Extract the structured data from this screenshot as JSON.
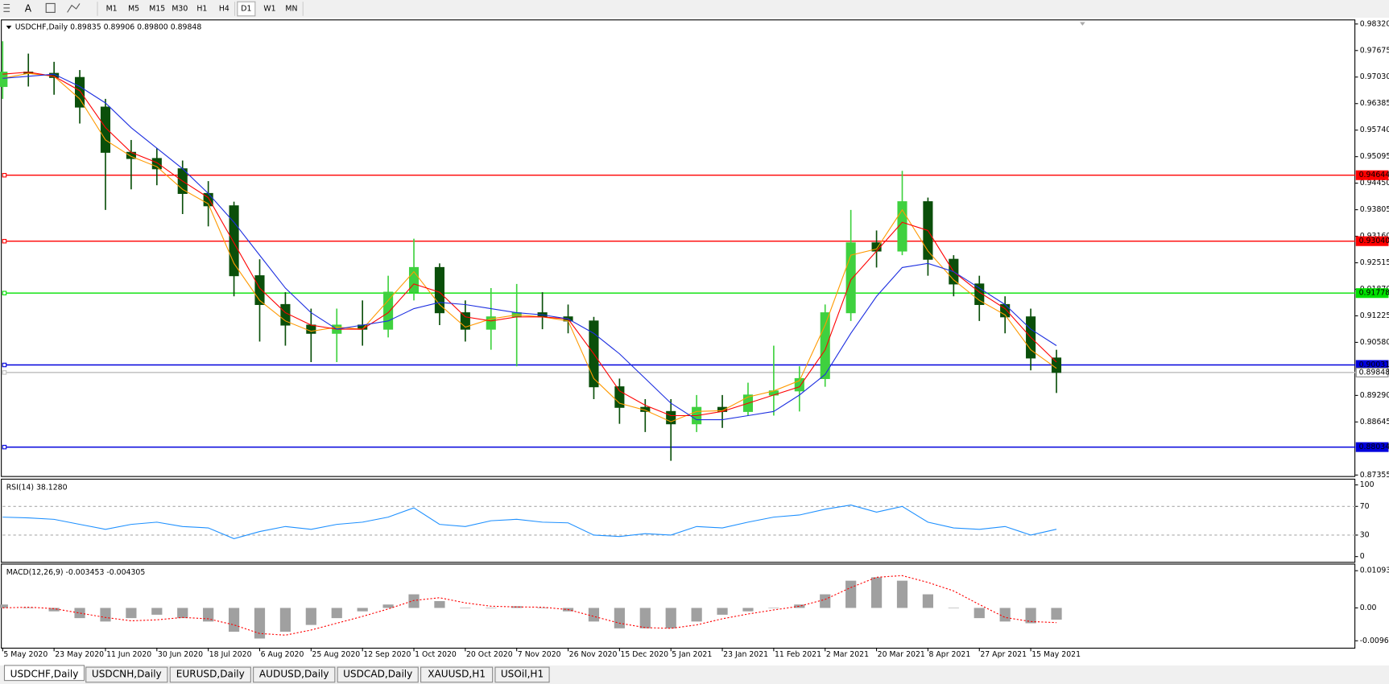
{
  "toolbar": {
    "timeframes": [
      "M1",
      "M5",
      "M15",
      "M30",
      "H1",
      "H4",
      "D1",
      "W1",
      "MN"
    ]
  },
  "tabs": [
    "USDCHF,Daily",
    "USDCNH,Daily",
    "EURUSD,Daily",
    "AUDUSD,Daily",
    "USDCAD,Daily",
    "XAUUSD,H1",
    "USOil,H1"
  ],
  "chart_data": [
    {
      "type": "candlestick",
      "title": "USDCHF,Daily  0.89835 0.89906 0.89800 0.89848",
      "up_color": "#3fd13f",
      "down_color": "#0a4f0a",
      "x": [
        0,
        7,
        14,
        21,
        28,
        35,
        42,
        49,
        56,
        63,
        70,
        77,
        84,
        91,
        98,
        105,
        112,
        119,
        126,
        133,
        140,
        147,
        154,
        161,
        168,
        175,
        182,
        189,
        196,
        203,
        210,
        217,
        224,
        231,
        238,
        245,
        252,
        259,
        266,
        273,
        280,
        287
      ],
      "open": [
        0.968,
        0.9715,
        0.9712,
        0.9702,
        0.963,
        0.952,
        0.9505,
        0.948,
        0.942,
        0.939,
        0.922,
        0.915,
        0.91,
        0.908,
        0.91,
        0.909,
        0.918,
        0.924,
        0.913,
        0.909,
        0.912,
        0.913,
        0.912,
        0.911,
        0.895,
        0.89,
        0.889,
        0.886,
        0.89,
        0.889,
        0.893,
        0.894,
        0.897,
        0.913,
        0.93,
        0.928,
        0.94,
        0.926,
        0.92,
        0.915,
        0.912,
        0.902
      ],
      "high": [
        0.979,
        0.976,
        0.974,
        0.972,
        0.965,
        0.955,
        0.953,
        0.95,
        0.945,
        0.94,
        0.926,
        0.918,
        0.914,
        0.914,
        0.916,
        0.922,
        0.931,
        0.925,
        0.916,
        0.919,
        0.92,
        0.918,
        0.915,
        0.912,
        0.897,
        0.892,
        0.892,
        0.893,
        0.893,
        0.896,
        0.905,
        0.9,
        0.915,
        0.938,
        0.933,
        0.9475,
        0.941,
        0.927,
        0.922,
        0.917,
        0.914,
        0.904
      ],
      "low": [
        0.965,
        0.968,
        0.966,
        0.959,
        0.938,
        0.943,
        0.944,
        0.937,
        0.934,
        0.917,
        0.906,
        0.905,
        0.901,
        0.901,
        0.905,
        0.907,
        0.916,
        0.91,
        0.906,
        0.904,
        0.9,
        0.909,
        0.908,
        0.892,
        0.886,
        0.884,
        0.877,
        0.884,
        0.885,
        0.888,
        0.888,
        0.889,
        0.895,
        0.911,
        0.924,
        0.927,
        0.922,
        0.917,
        0.911,
        0.908,
        0.899,
        0.8935
      ],
      "close": [
        0.9715,
        0.9712,
        0.9702,
        0.963,
        0.952,
        0.9505,
        0.948,
        0.942,
        0.939,
        0.922,
        0.915,
        0.91,
        0.908,
        0.91,
        0.909,
        0.918,
        0.924,
        0.913,
        0.909,
        0.912,
        0.913,
        0.912,
        0.911,
        0.895,
        0.89,
        0.889,
        0.886,
        0.89,
        0.889,
        0.893,
        0.894,
        0.897,
        0.913,
        0.93,
        0.928,
        0.94,
        0.926,
        0.92,
        0.915,
        0.912,
        0.902,
        0.8985
      ],
      "series": [
        {
          "color": "#ff9900",
          "values": [
            0.97,
            0.9712,
            0.9705,
            0.965,
            0.955,
            0.951,
            0.9485,
            0.943,
            0.9395,
            0.925,
            0.916,
            0.911,
            0.9085,
            0.9095,
            0.909,
            0.916,
            0.923,
            0.915,
            0.9095,
            0.9115,
            0.9125,
            0.912,
            0.911,
            0.897,
            0.891,
            0.8893,
            0.8865,
            0.889,
            0.8892,
            0.8925,
            0.894,
            0.8965,
            0.91,
            0.927,
            0.9285,
            0.938,
            0.928,
            0.921,
            0.916,
            0.9125,
            0.904,
            0.8995
          ]
        },
        {
          "color": "#ff0000",
          "values": [
            0.971,
            0.9715,
            0.9705,
            0.967,
            0.958,
            0.952,
            0.9495,
            0.945,
            0.941,
            0.93,
            0.919,
            0.913,
            0.91,
            0.909,
            0.909,
            0.913,
            0.92,
            0.918,
            0.912,
            0.911,
            0.912,
            0.912,
            0.9115,
            0.903,
            0.894,
            0.8905,
            0.888,
            0.888,
            0.889,
            0.891,
            0.893,
            0.895,
            0.904,
            0.921,
            0.928,
            0.935,
            0.933,
            0.923,
            0.918,
            0.914,
            0.907,
            0.901
          ]
        },
        {
          "color": "#1c2ee0",
          "values": [
            0.97,
            0.9705,
            0.971,
            0.968,
            0.964,
            0.958,
            0.953,
            0.948,
            0.942,
            0.935,
            0.927,
            0.919,
            0.913,
            0.909,
            0.91,
            0.911,
            0.914,
            0.9155,
            0.915,
            0.914,
            0.913,
            0.9125,
            0.9115,
            0.908,
            0.903,
            0.897,
            0.891,
            0.887,
            0.887,
            0.888,
            0.889,
            0.893,
            0.898,
            0.908,
            0.917,
            0.924,
            0.925,
            0.923,
            0.919,
            0.915,
            0.909,
            0.905
          ]
        }
      ],
      "levels": [
        {
          "value": 0.94644,
          "color": "#ff0000"
        },
        {
          "value": 0.9304,
          "label": "0.93040",
          "color": "#ff0000"
        },
        {
          "value": 0.91778,
          "color": "#00e000"
        },
        {
          "value": 0.90031,
          "color": "#0000dd"
        },
        {
          "value": 0.88034,
          "color": "#0000dd"
        },
        {
          "value": 0.89848,
          "color": "#c0c0c0"
        }
      ],
      "xlim": [
        0,
        368.4
      ],
      "ylim": [
        0.8733,
        0.9843
      ],
      "yticks": [
        {
          "value": 0.9832,
          "label": "0.98320"
        },
        0.97675,
        {
          "value": 0.9703,
          "label": "0.97030"
        },
        0.96385,
        {
          "value": 0.9574,
          "label": "0.95740"
        },
        0.95095,
        {
          "value": 0.9445,
          "label": "0.94450"
        },
        0.93805,
        {
          "value": 0.9316,
          "label": "0.93160"
        },
        0.92515,
        {
          "value": 0.9187,
          "label": "0.91870"
        },
        0.91225,
        {
          "value": 0.9058,
          "label": "0.90580"
        },
        {
          "value": 0.8929,
          "label": "0.89290"
        },
        0.88645,
        0.87355
      ],
      "xticks": [
        {
          "value": 0,
          "label": "5 May 2020"
        },
        {
          "value": 14,
          "label": "23 May 2020"
        },
        {
          "value": 28,
          "label": "11 Jun 2020"
        },
        {
          "value": 42,
          "label": "30 Jun 2020"
        },
        {
          "value": 56,
          "label": "18 Jul 2020"
        },
        {
          "value": 70,
          "label": "6 Aug 2020"
        },
        {
          "value": 84,
          "label": "25 Aug 2020"
        },
        {
          "value": 98,
          "label": "12 Sep 2020"
        },
        {
          "value": 112,
          "label": "1 Oct 2020"
        },
        {
          "value": 126,
          "label": "20 Oct 2020"
        },
        {
          "value": 140,
          "label": "7 Nov 2020"
        },
        {
          "value": 154,
          "label": "26 Nov 2020"
        },
        {
          "value": 168,
          "label": "15 Dec 2020"
        },
        {
          "value": 182,
          "label": "5 Jan 2021"
        },
        {
          "value": 196,
          "label": "23 Jan 2021"
        },
        {
          "value": 210,
          "label": "11 Feb 2021"
        },
        {
          "value": 224,
          "label": "2 Mar 2021"
        },
        {
          "value": 238,
          "label": "20 Mar 2021"
        },
        {
          "value": 252,
          "label": "8 Apr 2021"
        },
        {
          "value": 266,
          "label": "27 Apr 2021"
        },
        {
          "value": 280,
          "label": "15 May 2021"
        }
      ]
    },
    {
      "type": "line",
      "title": "RSI(14) 38.1280",
      "color": "#1e90ff",
      "values": [
        55,
        54,
        52,
        45,
        38,
        45,
        48,
        42,
        40,
        25,
        35,
        42,
        38,
        45,
        48,
        55,
        68,
        45,
        42,
        50,
        52,
        48,
        47,
        30,
        28,
        32,
        30,
        42,
        40,
        48,
        55,
        58,
        66,
        72,
        62,
        70,
        48,
        40,
        38,
        42,
        30,
        38.128
      ],
      "ylim": [
        -7.4,
        107.4
      ],
      "yticks": [
        100,
        70,
        30,
        0
      ]
    },
    {
      "type": "macd",
      "title": "MACD(12,26,9) -0.003453 -0.004305",
      "color": "#a0a0a0",
      "signal_color": "#ff0000",
      "values": [
        0.001,
        0,
        -0.001,
        -0.003,
        -0.004,
        -0.003,
        -0.002,
        -0.003,
        -0.004,
        -0.007,
        -0.009,
        -0.007,
        -0.005,
        -0.003,
        -0.001,
        0.001,
        0.004,
        0.002,
        0,
        0,
        0.0005,
        0,
        -0.001,
        -0.004,
        -0.006,
        -0.006,
        -0.006,
        -0.004,
        -0.002,
        -0.001,
        0,
        0.001,
        0.004,
        0.008,
        0.009,
        0.008,
        0.004,
        0,
        -0.003,
        -0.004,
        -0.0045,
        -0.003453
      ],
      "signal": [
        0,
        0.0002,
        -0.0002,
        -0.0015,
        -0.0028,
        -0.0038,
        -0.0035,
        -0.0028,
        -0.0032,
        -0.005,
        -0.0075,
        -0.008,
        -0.0065,
        -0.0045,
        -0.0025,
        -0.0003,
        0.0022,
        0.003,
        0.0015,
        0.0005,
        0.0003,
        0.0002,
        -0.0005,
        -0.0025,
        -0.0045,
        -0.0058,
        -0.006,
        -0.005,
        -0.0032,
        -0.0018,
        -0.0006,
        0.0005,
        0.0025,
        0.006,
        0.009,
        0.0095,
        0.0075,
        0.005,
        0.001,
        -0.0028,
        -0.004,
        -0.004305
      ],
      "ylim": [
        -0.0117,
        0.01275
      ],
      "yticks": [
        0.010933,
        {
          "value": 0,
          "label": "0.00"
        },
        -0.009665
      ]
    }
  ]
}
